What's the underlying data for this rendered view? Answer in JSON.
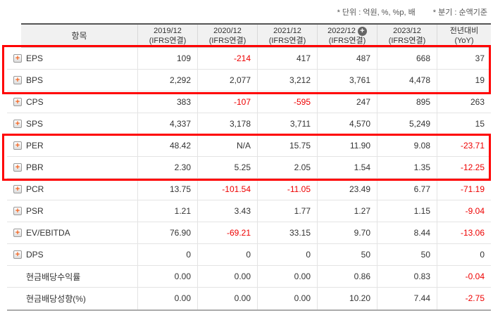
{
  "notes": {
    "unit": "* 단위 : 억원, %, %p, 배",
    "basis": "* 분기 : 순액기준"
  },
  "colors": {
    "negative_value": "#ee0000",
    "highlight_box": "#ff0000",
    "expand_icon_plus": "#f26522",
    "header_bg": "#f1f1f1"
  },
  "table": {
    "item_header": "항목",
    "columns": [
      {
        "line1": "2019/12",
        "line2": "(IFRS연결)",
        "has_plus": false
      },
      {
        "line1": "2020/12",
        "line2": "(IFRS연결)",
        "has_plus": false
      },
      {
        "line1": "2021/12",
        "line2": "(IFRS연결)",
        "has_plus": false
      },
      {
        "line1": "2022/12",
        "line2": "(IFRS연결)",
        "has_plus": true
      },
      {
        "line1": "2023/12",
        "line2": "(IFRS연결)",
        "has_plus": false
      }
    ],
    "plus_column_index": 4,
    "yoy_header": {
      "line1": "전년대비",
      "line2": "(YoY)"
    },
    "rows": [
      {
        "label": "EPS",
        "expand": true,
        "values": [
          "109",
          "-214",
          "417",
          "487",
          "668",
          "37"
        ]
      },
      {
        "label": "BPS",
        "expand": true,
        "values": [
          "2,292",
          "2,077",
          "3,212",
          "3,761",
          "4,478",
          "19"
        ]
      },
      {
        "label": "CPS",
        "expand": true,
        "values": [
          "383",
          "-107",
          "-595",
          "247",
          "895",
          "263"
        ]
      },
      {
        "label": "SPS",
        "expand": true,
        "values": [
          "4,337",
          "3,178",
          "3,711",
          "4,570",
          "5,249",
          "15"
        ]
      },
      {
        "label": "PER",
        "expand": true,
        "values": [
          "48.42",
          "N/A",
          "15.75",
          "11.90",
          "9.08",
          "-23.71"
        ]
      },
      {
        "label": "PBR",
        "expand": true,
        "values": [
          "2.30",
          "5.25",
          "2.05",
          "1.54",
          "1.35",
          "-12.25"
        ]
      },
      {
        "label": "PCR",
        "expand": true,
        "values": [
          "13.75",
          "-101.54",
          "-11.05",
          "23.49",
          "6.77",
          "-71.19"
        ]
      },
      {
        "label": "PSR",
        "expand": true,
        "values": [
          "1.21",
          "3.43",
          "1.77",
          "1.27",
          "1.15",
          "-9.04"
        ]
      },
      {
        "label": "EV/EBITDA",
        "expand": true,
        "values": [
          "76.90",
          "-69.21",
          "33.15",
          "9.70",
          "8.44",
          "-13.06"
        ]
      },
      {
        "label": "DPS",
        "expand": true,
        "values": [
          "0",
          "0",
          "0",
          "50",
          "50",
          "0"
        ]
      },
      {
        "label": "현금배당수익률",
        "expand": false,
        "values": [
          "0.00",
          "0.00",
          "0.00",
          "0.86",
          "0.83",
          "-0.04"
        ]
      },
      {
        "label": "현금배당성향(%)",
        "expand": false,
        "values": [
          "0.00",
          "0.00",
          "0.00",
          "10.20",
          "7.44",
          "-2.75"
        ]
      }
    ],
    "annotations": {
      "highlight_box_1_rows": [
        "EPS",
        "BPS"
      ],
      "highlight_box_2_rows": [
        "PER",
        "PBR"
      ]
    }
  }
}
